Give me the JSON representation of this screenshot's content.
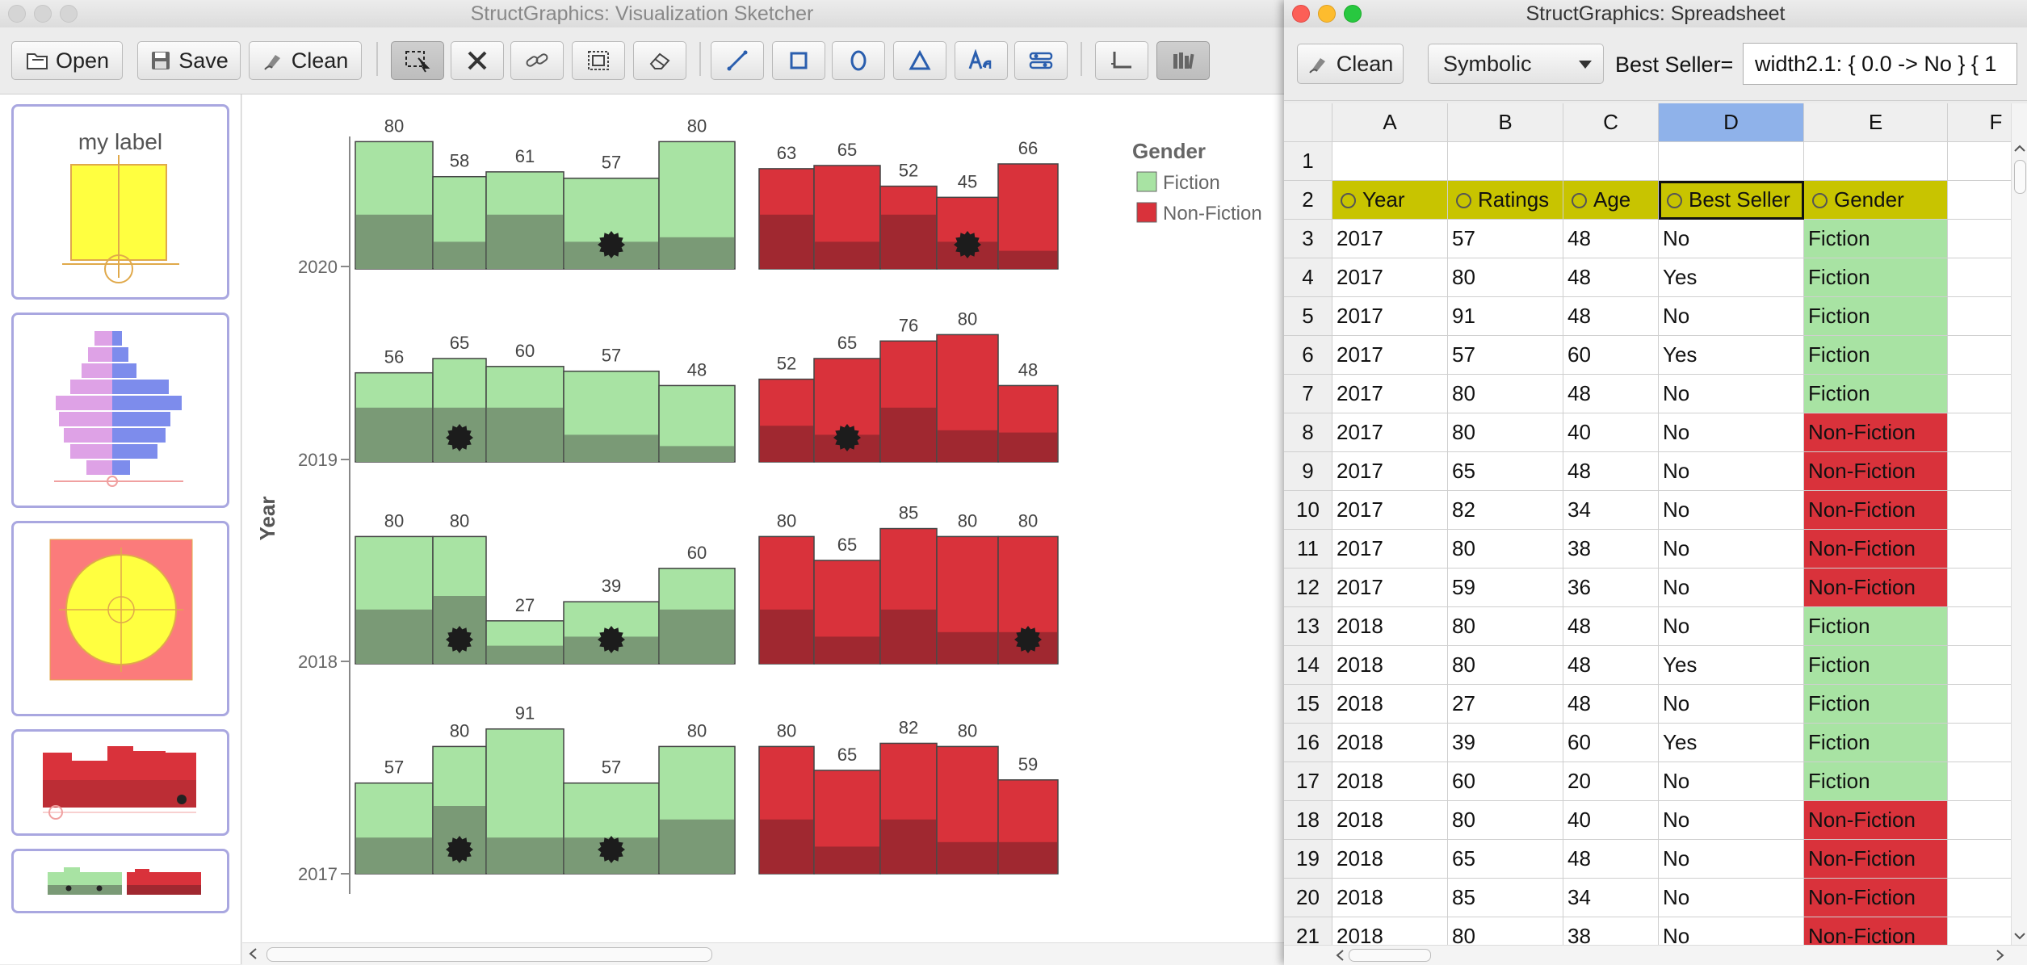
{
  "sketcher": {
    "title": "StructGraphics: Visualization Sketcher",
    "toolbar": {
      "open_label": "Open",
      "save_label": "Save",
      "clean_label": "Clean",
      "tool_icons": [
        "select-icon",
        "delete-icon",
        "link-icon",
        "group-icon",
        "eraser-icon",
        "line-icon",
        "rectangle-icon",
        "ellipse-icon",
        "triangle-icon",
        "text-icon",
        "property-icon",
        "axis-icon",
        "library-icon"
      ]
    },
    "library": {
      "label_thumb_text": "my label"
    }
  },
  "chart_data": {
    "type": "bar",
    "ylabel": "Year",
    "years": [
      "2020",
      "2019",
      "2018",
      "2017"
    ],
    "legend": {
      "title": "Gender",
      "entries": [
        "Fiction",
        "Non-Fiction"
      ],
      "colors": [
        "#a8e3a3",
        "#d9323b"
      ]
    },
    "rows": [
      {
        "year": "2020",
        "fiction": [
          {
            "rating": 80,
            "age": 48,
            "best": false
          },
          {
            "rating": 58,
            "age": 24,
            "best": false
          },
          {
            "rating": 61,
            "age": 48,
            "best": false
          },
          {
            "rating": 57,
            "age": 24,
            "best": true
          },
          {
            "rating": 80,
            "age": 28,
            "best": false
          }
        ],
        "nonfiction": [
          {
            "rating": 63,
            "age": 48,
            "best": false
          },
          {
            "rating": 65,
            "age": 24,
            "best": false
          },
          {
            "rating": 52,
            "age": 48,
            "best": false
          },
          {
            "rating": 45,
            "age": 24,
            "best": true
          },
          {
            "rating": 66,
            "age": 16,
            "best": false
          }
        ]
      },
      {
        "year": "2019",
        "fiction": [
          {
            "rating": 56,
            "age": 48,
            "best": false
          },
          {
            "rating": 65,
            "age": 48,
            "best": true
          },
          {
            "rating": 60,
            "age": 48,
            "best": false
          },
          {
            "rating": 57,
            "age": 24,
            "best": false
          },
          {
            "rating": 48,
            "age": 14,
            "best": false
          }
        ],
        "nonfiction": [
          {
            "rating": 52,
            "age": 32,
            "best": false
          },
          {
            "rating": 65,
            "age": 24,
            "best": true
          },
          {
            "rating": 76,
            "age": 48,
            "best": false
          },
          {
            "rating": 80,
            "age": 28,
            "best": false
          },
          {
            "rating": 48,
            "age": 26,
            "best": false
          }
        ]
      },
      {
        "year": "2018",
        "fiction": [
          {
            "rating": 80,
            "age": 48,
            "best": false
          },
          {
            "rating": 80,
            "age": 60,
            "best": true
          },
          {
            "rating": 27,
            "age": 16,
            "best": false
          },
          {
            "rating": 39,
            "age": 24,
            "best": true
          },
          {
            "rating": 60,
            "age": 48,
            "best": false
          }
        ],
        "nonfiction": [
          {
            "rating": 80,
            "age": 48,
            "best": false
          },
          {
            "rating": 65,
            "age": 24,
            "best": false
          },
          {
            "rating": 85,
            "age": 48,
            "best": false
          },
          {
            "rating": 80,
            "age": 28,
            "best": false
          },
          {
            "rating": 80,
            "age": 28,
            "best": true
          }
        ]
      },
      {
        "year": "2017",
        "fiction": [
          {
            "rating": 57,
            "age": 32,
            "best": false
          },
          {
            "rating": 80,
            "age": 60,
            "best": true
          },
          {
            "rating": 91,
            "age": 32,
            "best": false
          },
          {
            "rating": 57,
            "age": 32,
            "best": true
          },
          {
            "rating": 80,
            "age": 48,
            "best": false
          }
        ],
        "nonfiction": [
          {
            "rating": 80,
            "age": 48,
            "best": false
          },
          {
            "rating": 65,
            "age": 24,
            "best": false
          },
          {
            "rating": 82,
            "age": 48,
            "best": false
          },
          {
            "rating": 80,
            "age": 28,
            "best": false
          },
          {
            "rating": 59,
            "age": 28,
            "best": false
          }
        ]
      }
    ]
  },
  "spreadsheet": {
    "title": "StructGraphics: Spreadsheet",
    "clean_label": "Clean",
    "mode_value": "Symbolic",
    "formula_label": "Best Seller=",
    "formula_value": "width2.1: { 0.0 -> No } { 1",
    "columns": [
      "A",
      "B",
      "C",
      "D",
      "E",
      "F"
    ],
    "selected_column": "D",
    "header_row_index": "2",
    "headers": [
      "Year",
      "Ratings",
      "Age",
      "Best Seller",
      "Gender"
    ],
    "rows": [
      {
        "n": "3",
        "cells": [
          "2017",
          "57",
          "48",
          "No",
          "Fiction"
        ]
      },
      {
        "n": "4",
        "cells": [
          "2017",
          "80",
          "48",
          "Yes",
          "Fiction"
        ]
      },
      {
        "n": "5",
        "cells": [
          "2017",
          "91",
          "48",
          "No",
          "Fiction"
        ]
      },
      {
        "n": "6",
        "cells": [
          "2017",
          "57",
          "60",
          "Yes",
          "Fiction"
        ]
      },
      {
        "n": "7",
        "cells": [
          "2017",
          "80",
          "48",
          "No",
          "Fiction"
        ]
      },
      {
        "n": "8",
        "cells": [
          "2017",
          "80",
          "40",
          "No",
          "Non-Fiction"
        ]
      },
      {
        "n": "9",
        "cells": [
          "2017",
          "65",
          "48",
          "No",
          "Non-Fiction"
        ]
      },
      {
        "n": "10",
        "cells": [
          "2017",
          "82",
          "34",
          "No",
          "Non-Fiction"
        ]
      },
      {
        "n": "11",
        "cells": [
          "2017",
          "80",
          "38",
          "No",
          "Non-Fiction"
        ]
      },
      {
        "n": "12",
        "cells": [
          "2017",
          "59",
          "36",
          "No",
          "Non-Fiction"
        ]
      },
      {
        "n": "13",
        "cells": [
          "2018",
          "80",
          "48",
          "No",
          "Fiction"
        ]
      },
      {
        "n": "14",
        "cells": [
          "2018",
          "80",
          "48",
          "Yes",
          "Fiction"
        ]
      },
      {
        "n": "15",
        "cells": [
          "2018",
          "27",
          "48",
          "No",
          "Fiction"
        ]
      },
      {
        "n": "16",
        "cells": [
          "2018",
          "39",
          "60",
          "Yes",
          "Fiction"
        ]
      },
      {
        "n": "17",
        "cells": [
          "2018",
          "60",
          "20",
          "No",
          "Fiction"
        ]
      },
      {
        "n": "18",
        "cells": [
          "2018",
          "80",
          "40",
          "No",
          "Non-Fiction"
        ]
      },
      {
        "n": "19",
        "cells": [
          "2018",
          "65",
          "48",
          "No",
          "Non-Fiction"
        ]
      },
      {
        "n": "20",
        "cells": [
          "2018",
          "85",
          "34",
          "No",
          "Non-Fiction"
        ]
      },
      {
        "n": "21",
        "cells": [
          "2018",
          "80",
          "38",
          "No",
          "Non-Fiction"
        ]
      }
    ]
  }
}
